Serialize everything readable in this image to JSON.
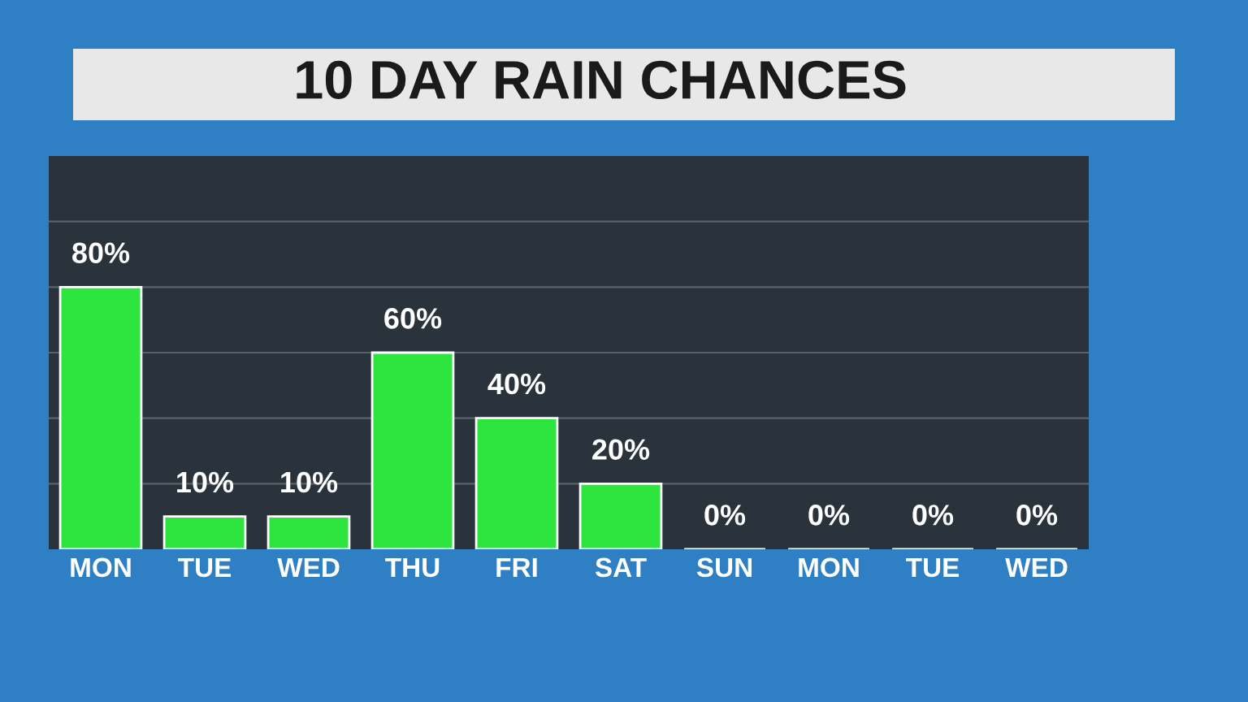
{
  "chart_data": {
    "type": "bar",
    "title": "10 DAY RAIN CHANCES",
    "categories": [
      "MON",
      "TUE",
      "WED",
      "THU",
      "FRI",
      "SAT",
      "SUN",
      "MON",
      "TUE",
      "WED"
    ],
    "values": [
      80,
      10,
      10,
      60,
      40,
      20,
      0,
      0,
      0,
      0
    ],
    "value_labels": [
      "80%",
      "10%",
      "10%",
      "60%",
      "40%",
      "20%",
      "0%",
      "0%",
      "0%",
      "0%"
    ],
    "color": "#2ee53f",
    "ylim": [
      0,
      120
    ],
    "yticks": [
      {
        "value": 20,
        "label": null
      },
      {
        "value": 40,
        "label": null
      },
      {
        "value": 60,
        "label": null
      },
      {
        "value": 80,
        "label": null
      },
      {
        "value": 100,
        "label": null
      }
    ],
    "grid": "y",
    "tick_labels": "x"
  }
}
